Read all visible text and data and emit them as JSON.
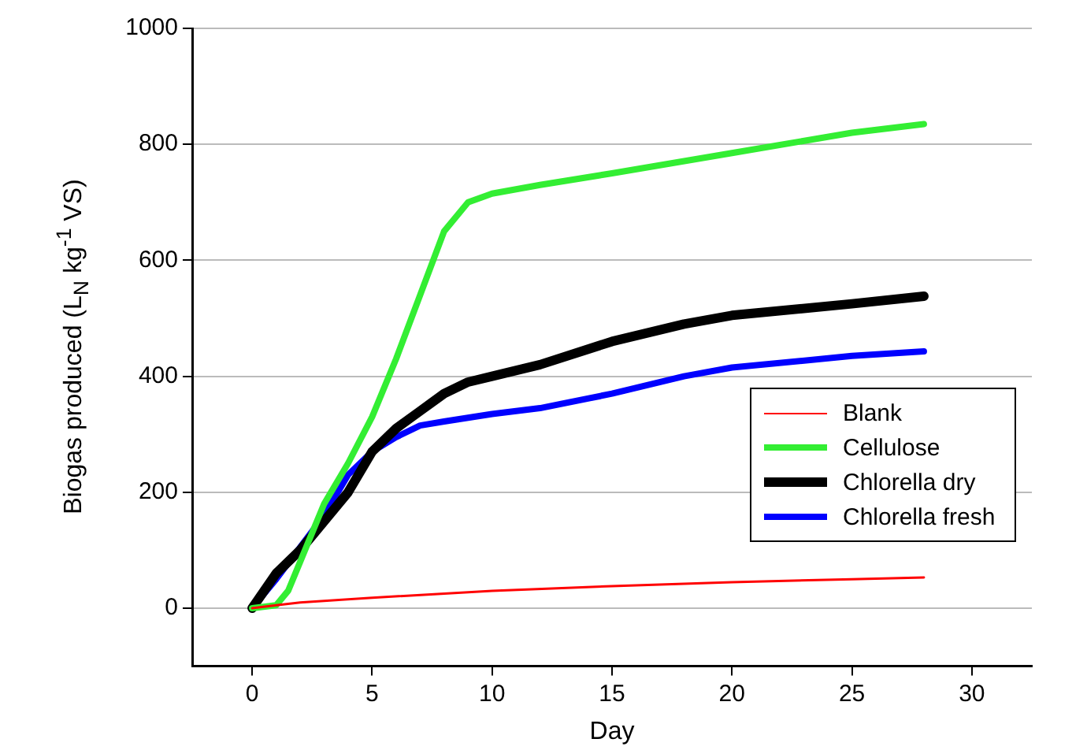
{
  "chart_data": {
    "type": "line",
    "xlabel": "Day",
    "ylabel": "Biogas produced (L$_{N}$ kg$^{-1}$ VS)",
    "xlim": [
      -2.5,
      32.5
    ],
    "xticks": [
      0,
      5,
      10,
      15,
      20,
      25,
      30
    ],
    "ylim": [
      -100,
      1000
    ],
    "yticks": [
      0,
      200,
      400,
      600,
      800,
      1000
    ],
    "grid": "y",
    "legend": "right",
    "marker": "none",
    "line_style": "solid",
    "series": [
      {
        "name": "Blank",
        "color": "#ff0000",
        "x": [
          0,
          1,
          2,
          5,
          10,
          15,
          20,
          25,
          28
        ],
        "values": [
          0,
          5,
          10,
          18,
          30,
          38,
          45,
          50,
          53
        ]
      },
      {
        "name": "Cellulose",
        "color": "#33ee33",
        "x": [
          0,
          1,
          1.5,
          2,
          3,
          4,
          5,
          6,
          7,
          8,
          9,
          10,
          12,
          15,
          20,
          25,
          28
        ],
        "values": [
          0,
          5,
          30,
          80,
          180,
          250,
          330,
          430,
          540,
          650,
          700,
          715,
          730,
          750,
          785,
          820,
          835
        ]
      },
      {
        "name": "Chlorella dry",
        "color": "#000000",
        "x": [
          0,
          1,
          2,
          3,
          4,
          5,
          6,
          7,
          8,
          9,
          10,
          12,
          15,
          18,
          20,
          25,
          28
        ],
        "values": [
          0,
          60,
          100,
          150,
          200,
          270,
          310,
          340,
          370,
          390,
          400,
          420,
          460,
          490,
          505,
          525,
          538
        ]
      },
      {
        "name": "Chlorella fresh",
        "color": "#0000ff",
        "x": [
          0,
          1,
          3,
          4,
          5,
          6,
          7,
          8,
          10,
          12,
          15,
          18,
          20,
          25,
          28
        ],
        "values": [
          0,
          50,
          160,
          230,
          270,
          295,
          315,
          322,
          335,
          345,
          370,
          400,
          415,
          435,
          443
        ]
      }
    ]
  }
}
